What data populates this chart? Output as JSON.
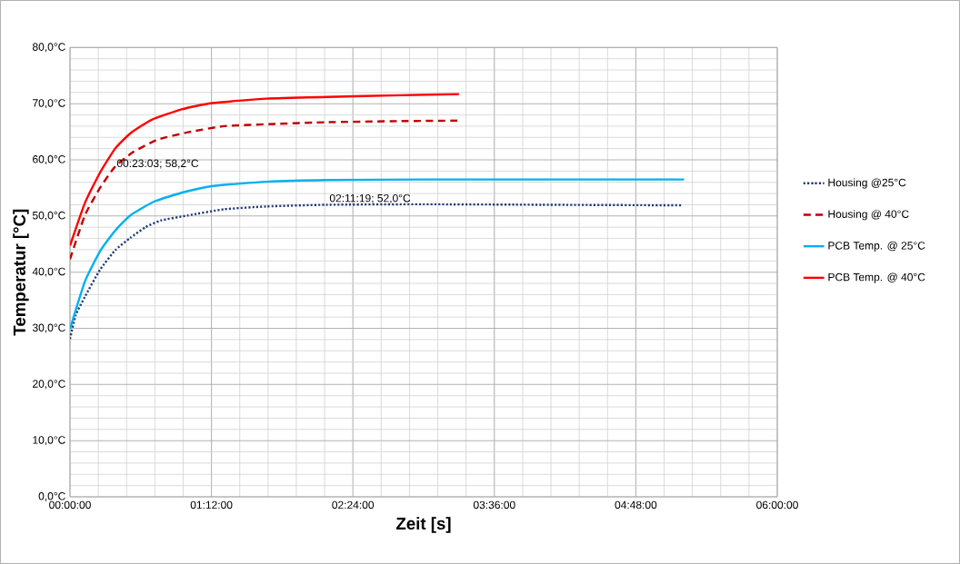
{
  "chart_data": {
    "type": "line",
    "xlabel": "Zeit [s]",
    "ylabel": "Temperatur [°C]",
    "xlim": [
      0,
      6
    ],
    "ylim": [
      0,
      80
    ],
    "xticks": [
      {
        "value": 0,
        "label": "00:00:00"
      },
      {
        "value": 1.2,
        "label": "01:12:00"
      },
      {
        "value": 2.4,
        "label": "02:24:00"
      },
      {
        "value": 3.6,
        "label": "03:36:00"
      },
      {
        "value": 4.8,
        "label": "04:48:00"
      },
      {
        "value": 6,
        "label": "06:00:00"
      }
    ],
    "yticks": [
      {
        "value": 0,
        "label": "0,0°C"
      },
      {
        "value": 10,
        "label": "10,0°C"
      },
      {
        "value": 20,
        "label": "20,0°C"
      },
      {
        "value": 30,
        "label": "30,0°C"
      },
      {
        "value": 40,
        "label": "40,0°C"
      },
      {
        "value": 50,
        "label": "50,0°C"
      },
      {
        "value": 60,
        "label": "60,0°C"
      },
      {
        "value": 70,
        "label": "70,0°C"
      },
      {
        "value": 80,
        "label": "80,0°C"
      }
    ],
    "grid": true,
    "legend": "right",
    "marker": "none",
    "series": [
      {
        "name": "Housing  @25°C",
        "color": "#1f3a78",
        "line_style": "dotted",
        "x": [
          0,
          0.049,
          0.126,
          0.254,
          0.383,
          0.511,
          0.64,
          0.77,
          1.0,
          1.308,
          1.668,
          2.18,
          3.0,
          4.0,
          5.2
        ],
        "values": [
          28.1,
          32.4,
          35.6,
          40.4,
          43.9,
          46.1,
          48.0,
          49.2,
          50.1,
          51.2,
          51.7,
          52.0,
          52.1,
          52.0,
          51.9
        ]
      },
      {
        "name": "Housing @ 40°C",
        "color": "#c00000",
        "line_style": "dashed",
        "x": [
          0,
          0.126,
          0.254,
          0.383,
          0.537,
          0.743,
          1.0,
          1.308,
          1.74,
          2.18,
          2.8,
          3.315
        ],
        "values": [
          42.3,
          50.1,
          55.0,
          58.8,
          61.4,
          63.6,
          64.9,
          66.0,
          66.4,
          66.7,
          66.9,
          67.0
        ]
      },
      {
        "name": "PCB Temp. @ 25°C",
        "color": "#00b0f0",
        "line_style": "solid",
        "x": [
          0,
          0.126,
          0.254,
          0.383,
          0.511,
          0.717,
          0.974,
          1.231,
          1.668,
          2.18,
          3.0,
          4.0,
          5.21
        ],
        "values": [
          29.9,
          38.3,
          43.7,
          47.4,
          50.1,
          52.6,
          54.3,
          55.4,
          56.1,
          56.4,
          56.5,
          56.5,
          56.5
        ]
      },
      {
        "name": "PCB Temp. @ 40°C",
        "color": "#ff0000",
        "line_style": "solid",
        "x": [
          0,
          0.126,
          0.254,
          0.383,
          0.511,
          0.69,
          0.948,
          1.205,
          1.668,
          2.18,
          2.8,
          3.3
        ],
        "values": [
          44.7,
          52.3,
          57.7,
          62.0,
          64.7,
          67.1,
          69.0,
          70.1,
          70.9,
          71.2,
          71.5,
          71.7
        ]
      }
    ],
    "annotations": [
      {
        "text": "00:23:03; 58,2°C",
        "x": 0.384,
        "y": 58.2
      },
      {
        "text": "02:11:19; 52,0°C",
        "x": 2.1886,
        "y": 52.0
      }
    ]
  }
}
